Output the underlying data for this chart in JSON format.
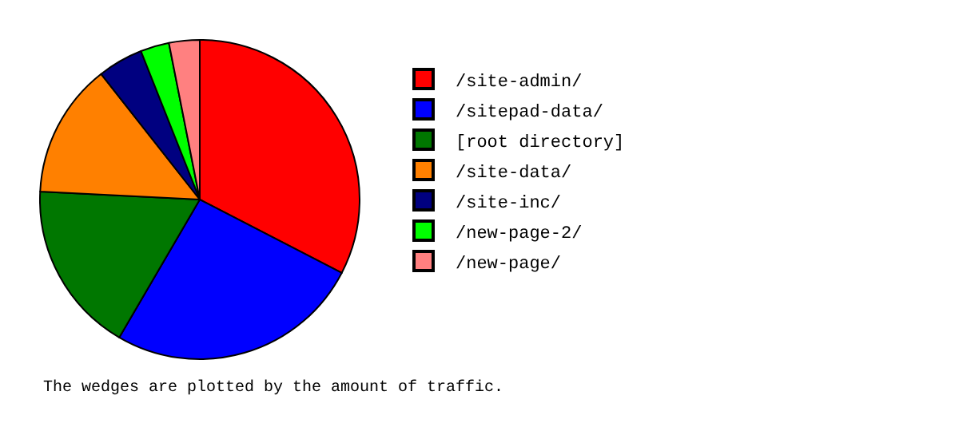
{
  "chart_data": {
    "type": "pie",
    "categories": [
      "/site-admin/",
      "/sitepad-data/",
      "[root directory]",
      "/site-data/",
      "/site-inc/",
      "/new-page-2/",
      "/new-page/"
    ],
    "values": [
      32.6,
      25.8,
      17.4,
      13.6,
      4.6,
      2.9,
      3.1
    ],
    "colors": [
      "#ff0000",
      "#0000ff",
      "#007700",
      "#ff8000",
      "#000080",
      "#00ff00",
      "#ff8080"
    ],
    "legend": "right",
    "annotations": [
      "The wedges are plotted by the amount of traffic."
    ]
  }
}
